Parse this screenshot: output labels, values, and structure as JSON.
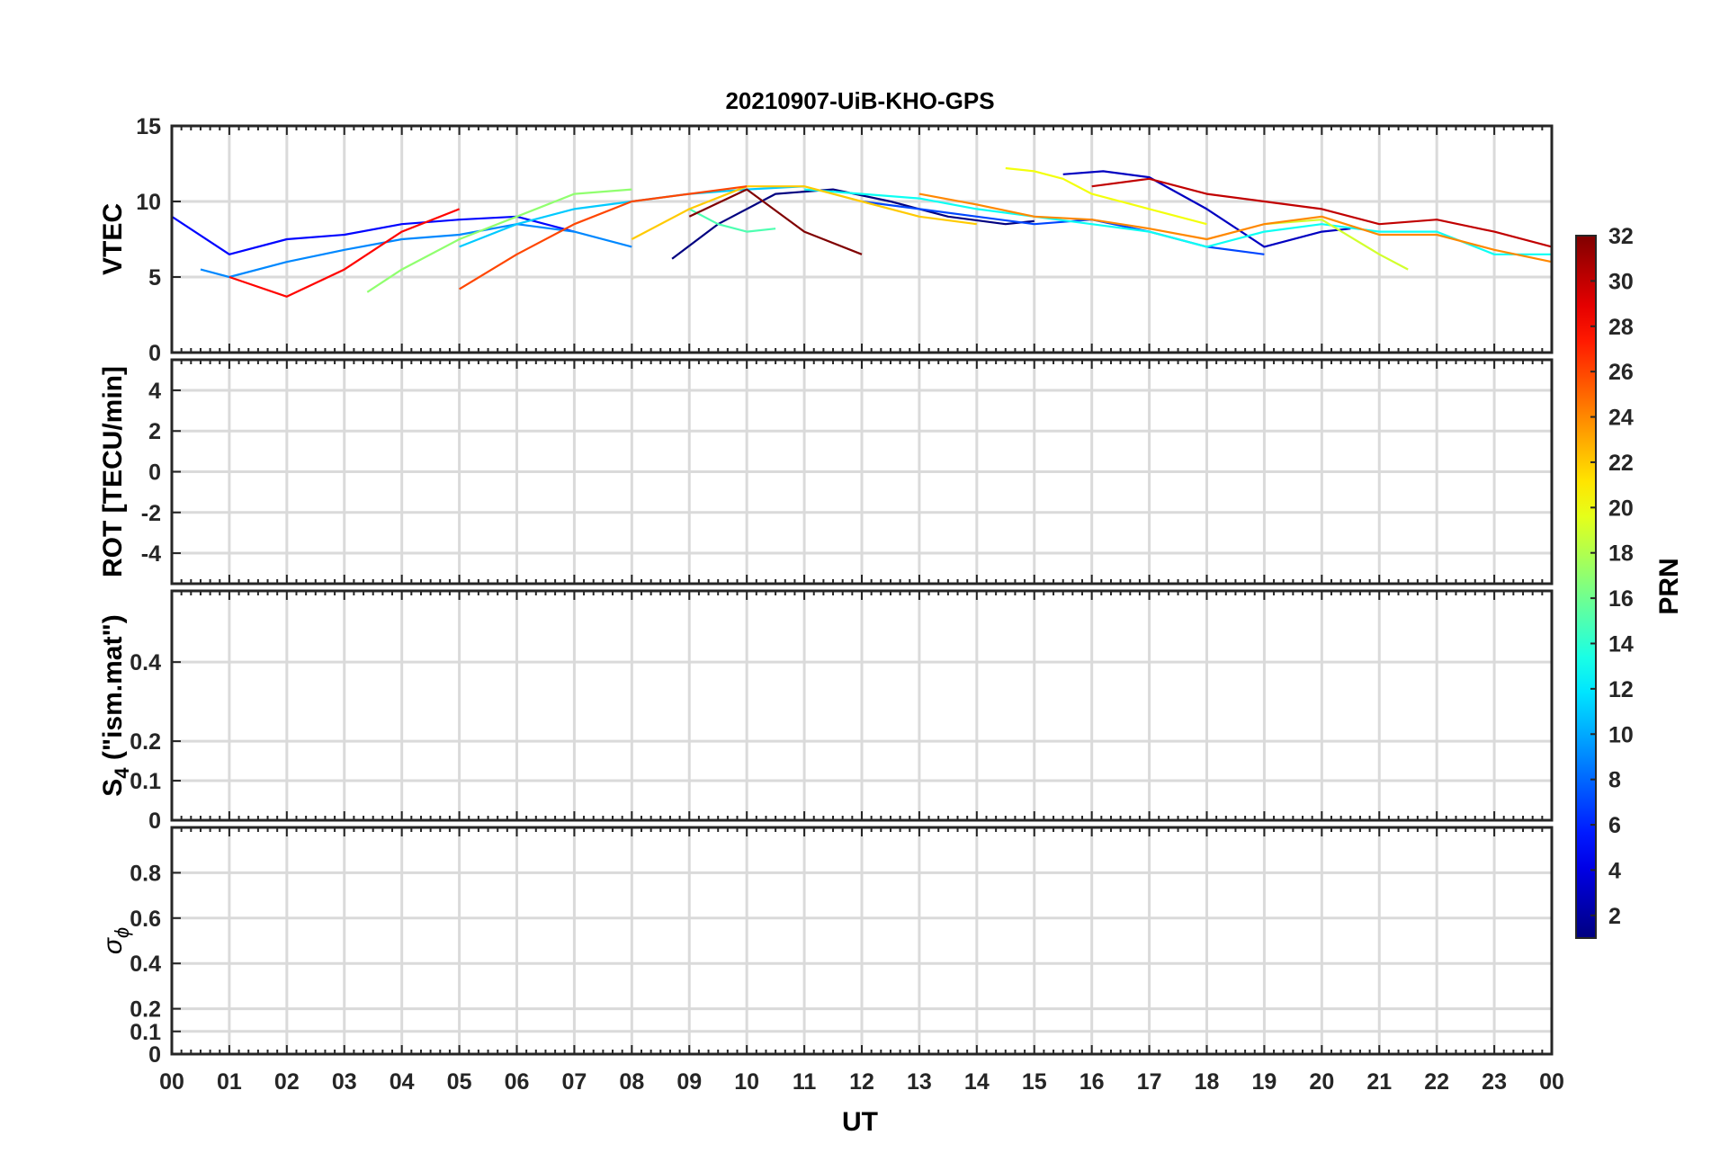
{
  "title": "20210907-UiB-KHO-GPS",
  "xlabel": "UT",
  "x_ticks": [
    "00",
    "01",
    "02",
    "03",
    "04",
    "05",
    "06",
    "07",
    "08",
    "09",
    "10",
    "11",
    "12",
    "13",
    "14",
    "15",
    "16",
    "17",
    "18",
    "19",
    "20",
    "21",
    "22",
    "23",
    "00"
  ],
  "colorbar": {
    "label": "PRN",
    "range": [
      1,
      32
    ],
    "colormap": "jet",
    "ticks": [
      "2",
      "4",
      "6",
      "8",
      "10",
      "12",
      "14",
      "16",
      "18",
      "20",
      "22",
      "24",
      "26",
      "28",
      "30",
      "32"
    ]
  },
  "panels": [
    {
      "id": "vtec",
      "ylabel": "VTEC",
      "ylim": [
        0,
        15
      ],
      "yticks": [
        "0",
        "5",
        "10",
        "15"
      ]
    },
    {
      "id": "rot",
      "ylabel": "ROT [TECU/min]",
      "ylim": [
        -5.5,
        5.5
      ],
      "yticks": [
        "-4",
        "-2",
        "0",
        "2",
        "4"
      ]
    },
    {
      "id": "s4",
      "ylabel_main": "S",
      "ylabel_sub": "4",
      "ylabel_rest": " (\"ism.mat\")",
      "ylim": [
        0,
        0.58
      ],
      "yticks": [
        "0",
        "0.1",
        "0.2",
        "0.4"
      ]
    },
    {
      "id": "sigma",
      "ylabel_main": "σ",
      "ylabel_sub": "ϕ",
      "ylim": [
        0,
        1
      ],
      "yticks": [
        "0",
        "0.1",
        "0.2",
        "0.4",
        "0.6",
        "0.8"
      ]
    }
  ],
  "chart_data": {
    "type": "line",
    "x_unit": "hours UT",
    "xlim": [
      0,
      24
    ],
    "series": [
      {
        "prn": 1,
        "panel": "vtec",
        "x": [
          8.7,
          9.5,
          10.5,
          11.5,
          12.5,
          13.5,
          14.5,
          15.0
        ],
        "y": [
          6.2,
          8.5,
          10.5,
          10.8,
          10.0,
          9.0,
          8.5,
          8.7
        ]
      },
      {
        "prn": 3,
        "panel": "vtec",
        "x": [
          15.5,
          16.2,
          17.0,
          18.0,
          19.0,
          20.0,
          20.5
        ],
        "y": [
          11.8,
          12.0,
          11.6,
          9.5,
          7.0,
          8.0,
          8.2
        ]
      },
      {
        "prn": 5,
        "panel": "vtec",
        "x": [
          0.0,
          1.0,
          2.0,
          3.0,
          4.0,
          5.0,
          6.0,
          7.0
        ],
        "y": [
          9.0,
          6.5,
          7.5,
          7.8,
          8.5,
          8.8,
          9.0,
          8.0
        ]
      },
      {
        "prn": 7,
        "panel": "vtec",
        "x": [
          12.0,
          13.0,
          14.0,
          15.0,
          16.0,
          17.0,
          18.0,
          19.0
        ],
        "y": [
          10.0,
          9.5,
          9.0,
          8.5,
          8.8,
          8.0,
          7.0,
          6.5
        ]
      },
      {
        "prn": 9,
        "panel": "vtec",
        "x": [
          0.5,
          1.0,
          2.0,
          3.0,
          4.0,
          5.0,
          6.0,
          7.0,
          8.0
        ],
        "y": [
          5.5,
          5.0,
          6.0,
          6.8,
          7.5,
          7.8,
          8.5,
          8.0,
          7.0
        ]
      },
      {
        "prn": 11,
        "panel": "vtec",
        "x": [
          5.0,
          6.0,
          7.0,
          8.0,
          9.0,
          10.0,
          11.0
        ],
        "y": [
          7.0,
          8.5,
          9.5,
          10.0,
          10.5,
          10.8,
          11.0
        ]
      },
      {
        "prn": 13,
        "panel": "vtec",
        "x": [
          11.0,
          12.0,
          13.0,
          14.0,
          15.0,
          16.0,
          17.0,
          18.0,
          19.0,
          20.0,
          21.0,
          22.0,
          23.0,
          24.0
        ],
        "y": [
          10.8,
          10.5,
          10.2,
          9.5,
          9.0,
          8.5,
          8.0,
          7.0,
          8.0,
          8.5,
          8.0,
          8.0,
          6.5,
          6.5
        ]
      },
      {
        "prn": 15,
        "panel": "vtec",
        "x": [
          9.0,
          9.5,
          10.0,
          10.5
        ],
        "y": [
          9.5,
          8.5,
          8.0,
          8.2
        ]
      },
      {
        "prn": 17,
        "panel": "vtec",
        "x": [
          3.4,
          4.0,
          5.0,
          6.0,
          7.0,
          8.0
        ],
        "y": [
          4.0,
          5.5,
          7.5,
          9.0,
          10.5,
          10.8
        ]
      },
      {
        "prn": 19,
        "panel": "vtec",
        "x": [
          19.0,
          20.0,
          21.0,
          21.5
        ],
        "y": [
          8.5,
          8.8,
          6.5,
          5.5
        ]
      },
      {
        "prn": 20,
        "panel": "vtec",
        "x": [
          14.5,
          15.0,
          15.5,
          16.0,
          17.0,
          18.0
        ],
        "y": [
          12.2,
          12.0,
          11.5,
          10.5,
          9.5,
          8.5
        ]
      },
      {
        "prn": 22,
        "panel": "vtec",
        "x": [
          8.0,
          9.0,
          10.0,
          11.0,
          12.0,
          13.0,
          14.0
        ],
        "y": [
          7.5,
          9.5,
          11.0,
          11.0,
          10.0,
          9.0,
          8.5
        ]
      },
      {
        "prn": 24,
        "panel": "vtec",
        "x": [
          13.0,
          14.0,
          15.0,
          16.0,
          17.0,
          18.0,
          19.0,
          20.0,
          21.0,
          22.0,
          23.0,
          24.0
        ],
        "y": [
          10.5,
          9.8,
          9.0,
          8.8,
          8.2,
          7.5,
          8.5,
          9.0,
          7.8,
          7.8,
          6.8,
          6.0
        ]
      },
      {
        "prn": 26,
        "panel": "vtec",
        "x": [
          5.0,
          6.0,
          7.0,
          8.0,
          9.0,
          10.0
        ],
        "y": [
          4.2,
          6.5,
          8.5,
          10.0,
          10.5,
          11.0
        ]
      },
      {
        "prn": 28,
        "panel": "vtec",
        "x": [
          1.0,
          2.0,
          3.0,
          4.0,
          5.0
        ],
        "y": [
          5.0,
          3.7,
          5.5,
          8.0,
          9.5
        ]
      },
      {
        "prn": 30,
        "panel": "vtec",
        "x": [
          16.0,
          17.0,
          18.0,
          19.0,
          20.0,
          21.0,
          22.0,
          23.0,
          24.0
        ],
        "y": [
          11.0,
          11.5,
          10.5,
          10.0,
          9.5,
          8.5,
          8.8,
          8.0,
          7.0
        ]
      },
      {
        "prn": 32,
        "panel": "vtec",
        "x": [
          9.0,
          10.0,
          11.0,
          12.0
        ],
        "y": [
          9.0,
          10.8,
          8.0,
          6.5
        ]
      }
    ],
    "notes": []
  }
}
